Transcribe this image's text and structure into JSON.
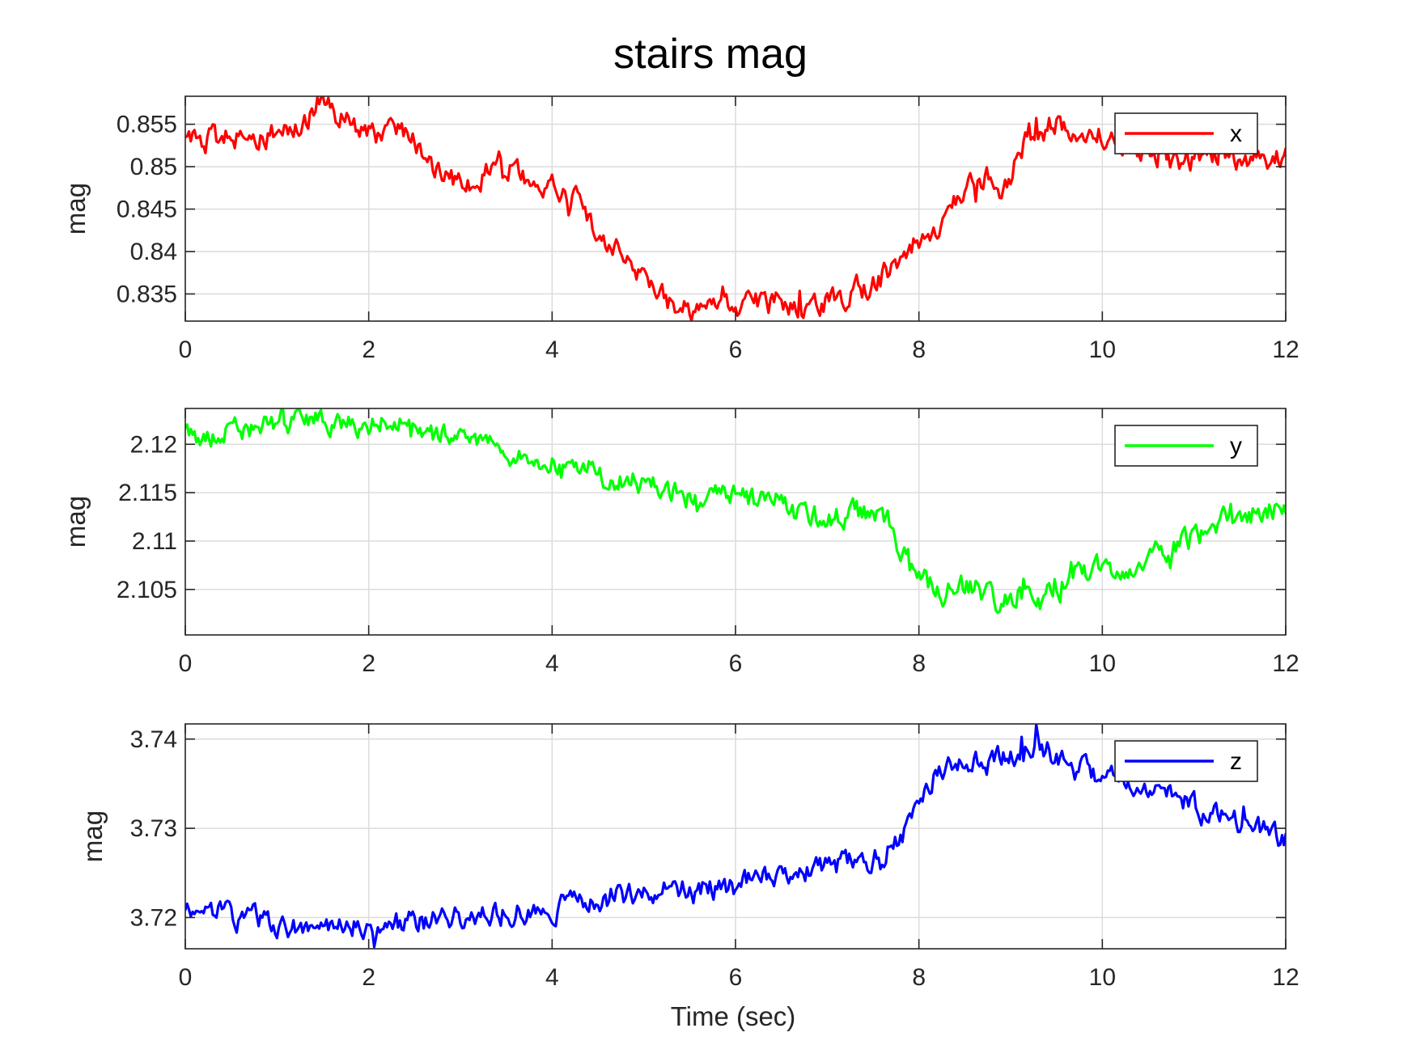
{
  "figure": {
    "title": "stairs mag",
    "xlabel": "Time (sec)"
  },
  "chart_data": [
    {
      "type": "line",
      "title": "",
      "xlabel": "",
      "ylabel": "mag",
      "xlim": [
        0,
        12
      ],
      "ylim": [
        0.8318,
        0.8583
      ],
      "xticks": [
        0,
        2,
        4,
        6,
        8,
        10,
        12
      ],
      "yticks": [
        0.835,
        0.84,
        0.845,
        0.85,
        0.855
      ],
      "ytick_labels": [
        "0.835",
        "0.84",
        "0.845",
        "0.85",
        "0.855"
      ],
      "grid": true,
      "legend_position": "top-right",
      "series": [
        {
          "name": "x",
          "color": "#ff0000",
          "x": [
            0,
            0.5,
            1,
            1.3,
            1.45,
            1.6,
            2,
            2.3,
            2.5,
            2.6,
            2.8,
            3,
            3.2,
            3.4,
            3.6,
            3.8,
            4,
            4.3,
            4.5,
            4.8,
            5,
            5.3,
            5.6,
            5.9,
            6.1,
            6.3,
            6.6,
            6.9,
            7.2,
            7.5,
            7.8,
            8,
            8.2,
            8.4,
            8.6,
            8.8,
            8.9,
            9.1,
            9.3,
            9.5,
            9.8,
            10,
            10.3,
            10.6,
            10.8,
            11,
            11.3,
            11.6,
            12
          ],
          "values": [
            0.8528,
            0.8534,
            0.8541,
            0.8553,
            0.8575,
            0.8563,
            0.8538,
            0.854,
            0.8531,
            0.8511,
            0.849,
            0.8488,
            0.8479,
            0.8512,
            0.8495,
            0.848,
            0.8475,
            0.846,
            0.8418,
            0.839,
            0.8365,
            0.8338,
            0.833,
            0.8336,
            0.833,
            0.8345,
            0.8335,
            0.8338,
            0.835,
            0.8362,
            0.8388,
            0.8415,
            0.8432,
            0.846,
            0.8485,
            0.8492,
            0.845,
            0.8525,
            0.8538,
            0.8555,
            0.854,
            0.853,
            0.852,
            0.8512,
            0.8502,
            0.851,
            0.8516,
            0.8508,
            0.8515
          ]
        }
      ]
    },
    {
      "type": "line",
      "title": "",
      "xlabel": "",
      "ylabel": "mag",
      "xlim": [
        0,
        12
      ],
      "ylim": [
        2.1003,
        2.1237
      ],
      "xticks": [
        0,
        2,
        4,
        6,
        8,
        10,
        12
      ],
      "yticks": [
        2.105,
        2.11,
        2.115,
        2.12
      ],
      "ytick_labels": [
        "2.105",
        "2.11",
        "2.115",
        "2.12"
      ],
      "grid": true,
      "legend_position": "top-right",
      "series": [
        {
          "name": "y",
          "color": "#00ff00",
          "x": [
            0,
            0.5,
            1,
            1.5,
            2,
            2.3,
            2.6,
            3,
            3.5,
            4,
            4.5,
            5,
            5.5,
            6,
            6.3,
            6.6,
            7,
            7.3,
            7.6,
            7.8,
            8,
            8.3,
            8.6,
            8.9,
            9.1,
            9.3,
            9.6,
            9.9,
            10.2,
            10.5,
            10.8,
            11.2,
            11.6,
            12
          ],
          "values": [
            2.121,
            2.1213,
            2.1222,
            2.1225,
            2.1215,
            2.1228,
            2.1212,
            2.1205,
            2.1195,
            2.118,
            2.1168,
            2.116,
            2.1145,
            2.115,
            2.114,
            2.1128,
            2.1122,
            2.1128,
            2.113,
            2.1095,
            2.106,
            2.1045,
            2.1055,
            2.103,
            2.1048,
            2.1035,
            2.1062,
            2.1072,
            2.1068,
            2.108,
            2.1095,
            2.1115,
            2.1128,
            2.1132
          ]
        }
      ]
    },
    {
      "type": "line",
      "title": "",
      "xlabel": "Time (sec)",
      "ylabel": "mag",
      "xlim": [
        0,
        12
      ],
      "ylim": [
        3.7165,
        3.7417
      ],
      "xticks": [
        0,
        2,
        4,
        6,
        8,
        10,
        12
      ],
      "yticks": [
        3.72,
        3.73,
        3.74
      ],
      "ytick_labels": [
        "3.72",
        "3.73",
        "3.74"
      ],
      "grid": true,
      "legend_position": "top-right",
      "series": [
        {
          "name": "z",
          "color": "#0000ff",
          "x": [
            0,
            0.3,
            0.6,
            1,
            1.3,
            1.6,
            2,
            2.5,
            3,
            3.5,
            4,
            4.5,
            5,
            5.5,
            6,
            6.5,
            7,
            7.3,
            7.6,
            7.8,
            8,
            8.2,
            8.5,
            8.8,
            9,
            9.2,
            9.3,
            9.5,
            9.8,
            10,
            10.4,
            10.8,
            11.2,
            11.6,
            12
          ],
          "values": [
            3.72,
            3.7205,
            3.72,
            3.7195,
            3.7188,
            3.719,
            3.7192,
            3.7195,
            3.72,
            3.7205,
            3.7212,
            3.7218,
            3.7228,
            3.7232,
            3.7235,
            3.7245,
            3.7255,
            3.7262,
            3.727,
            3.729,
            3.733,
            3.7365,
            3.7378,
            3.7372,
            3.7385,
            3.7392,
            3.74,
            3.7375,
            3.7368,
            3.7358,
            3.735,
            3.7335,
            3.7315,
            3.73,
            3.729
          ]
        }
      ]
    }
  ]
}
